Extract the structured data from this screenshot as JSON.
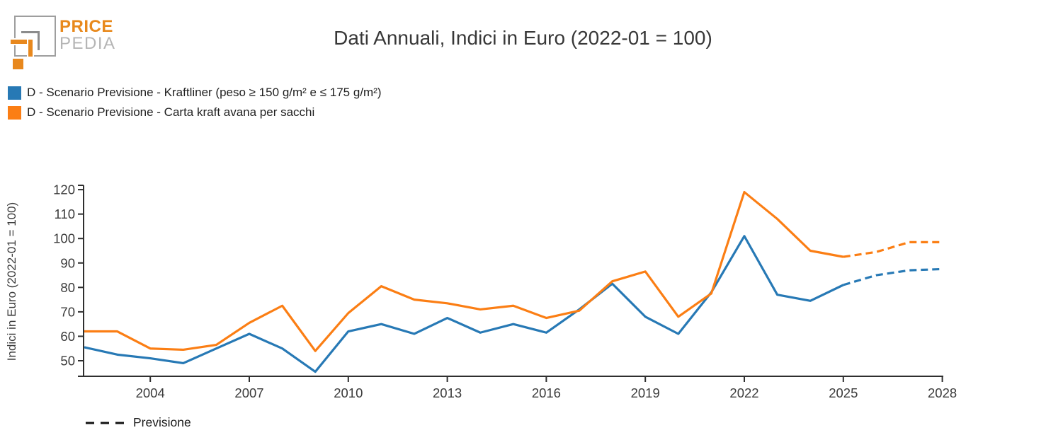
{
  "logo": {
    "line1": "PRICE",
    "line2": "PEDIA",
    "orange": "#e8881d",
    "gray": "#9e9e9e"
  },
  "header": {
    "title": "Dati Annuali, Indici in Euro (2022-01 = 100)"
  },
  "legend": {
    "items": [
      {
        "label": "D - Scenario Previsione - Kraftliner (peso ≥ 150 g/m² e ≤ 175 g/m²)",
        "color": "#2779b5"
      },
      {
        "label": "D - Scenario Previsione - Carta kraft avana per sacchi",
        "color": "#fb7e14"
      }
    ]
  },
  "footer_legend": {
    "label": "Previsione"
  },
  "chart_data": {
    "type": "line",
    "title": "Dati Annuali, Indici in Euro (2022-01 = 100)",
    "xlabel": "",
    "ylabel": "Indici in Euro (2022-01 = 100)",
    "x": [
      2002,
      2003,
      2004,
      2005,
      2006,
      2007,
      2008,
      2009,
      2010,
      2011,
      2012,
      2013,
      2014,
      2015,
      2016,
      2017,
      2018,
      2019,
      2020,
      2021,
      2022,
      2023,
      2024,
      2025,
      2026,
      2027,
      2028
    ],
    "x_ticks": [
      2004,
      2007,
      2010,
      2013,
      2016,
      2019,
      2022,
      2025,
      2028
    ],
    "yticks": [
      50,
      60,
      70,
      80,
      90,
      100,
      110,
      120
    ],
    "ylim": [
      43.5,
      122
    ],
    "xlim": [
      2002,
      2028.2
    ],
    "grid": false,
    "legend_position": "top-left",
    "forecast_from": 2025,
    "forecast_style": "dashed",
    "series": [
      {
        "name": "D - Scenario Previsione - Kraftliner (peso ≥ 150 g/m² e ≤ 175 g/m²)",
        "color": "#2779b5",
        "values": [
          55.5,
          52.5,
          51,
          49,
          55,
          61,
          55,
          45.5,
          62,
          65,
          61,
          67.5,
          61.5,
          65,
          61.5,
          71,
          81.5,
          68,
          61,
          78,
          101,
          77,
          74.5,
          81,
          85,
          87,
          87.5
        ]
      },
      {
        "name": "D - Scenario Previsione - Carta kraft avana per sacchi",
        "color": "#fb7e14",
        "values": [
          62,
          62,
          55,
          54.5,
          56.5,
          65.5,
          72.5,
          54,
          69.5,
          80.5,
          75,
          73.5,
          71,
          72.5,
          67.5,
          70.5,
          82.5,
          86.5,
          68,
          77.5,
          119,
          108,
          95,
          92.5,
          94.5,
          98.5,
          98.5
        ]
      }
    ]
  }
}
